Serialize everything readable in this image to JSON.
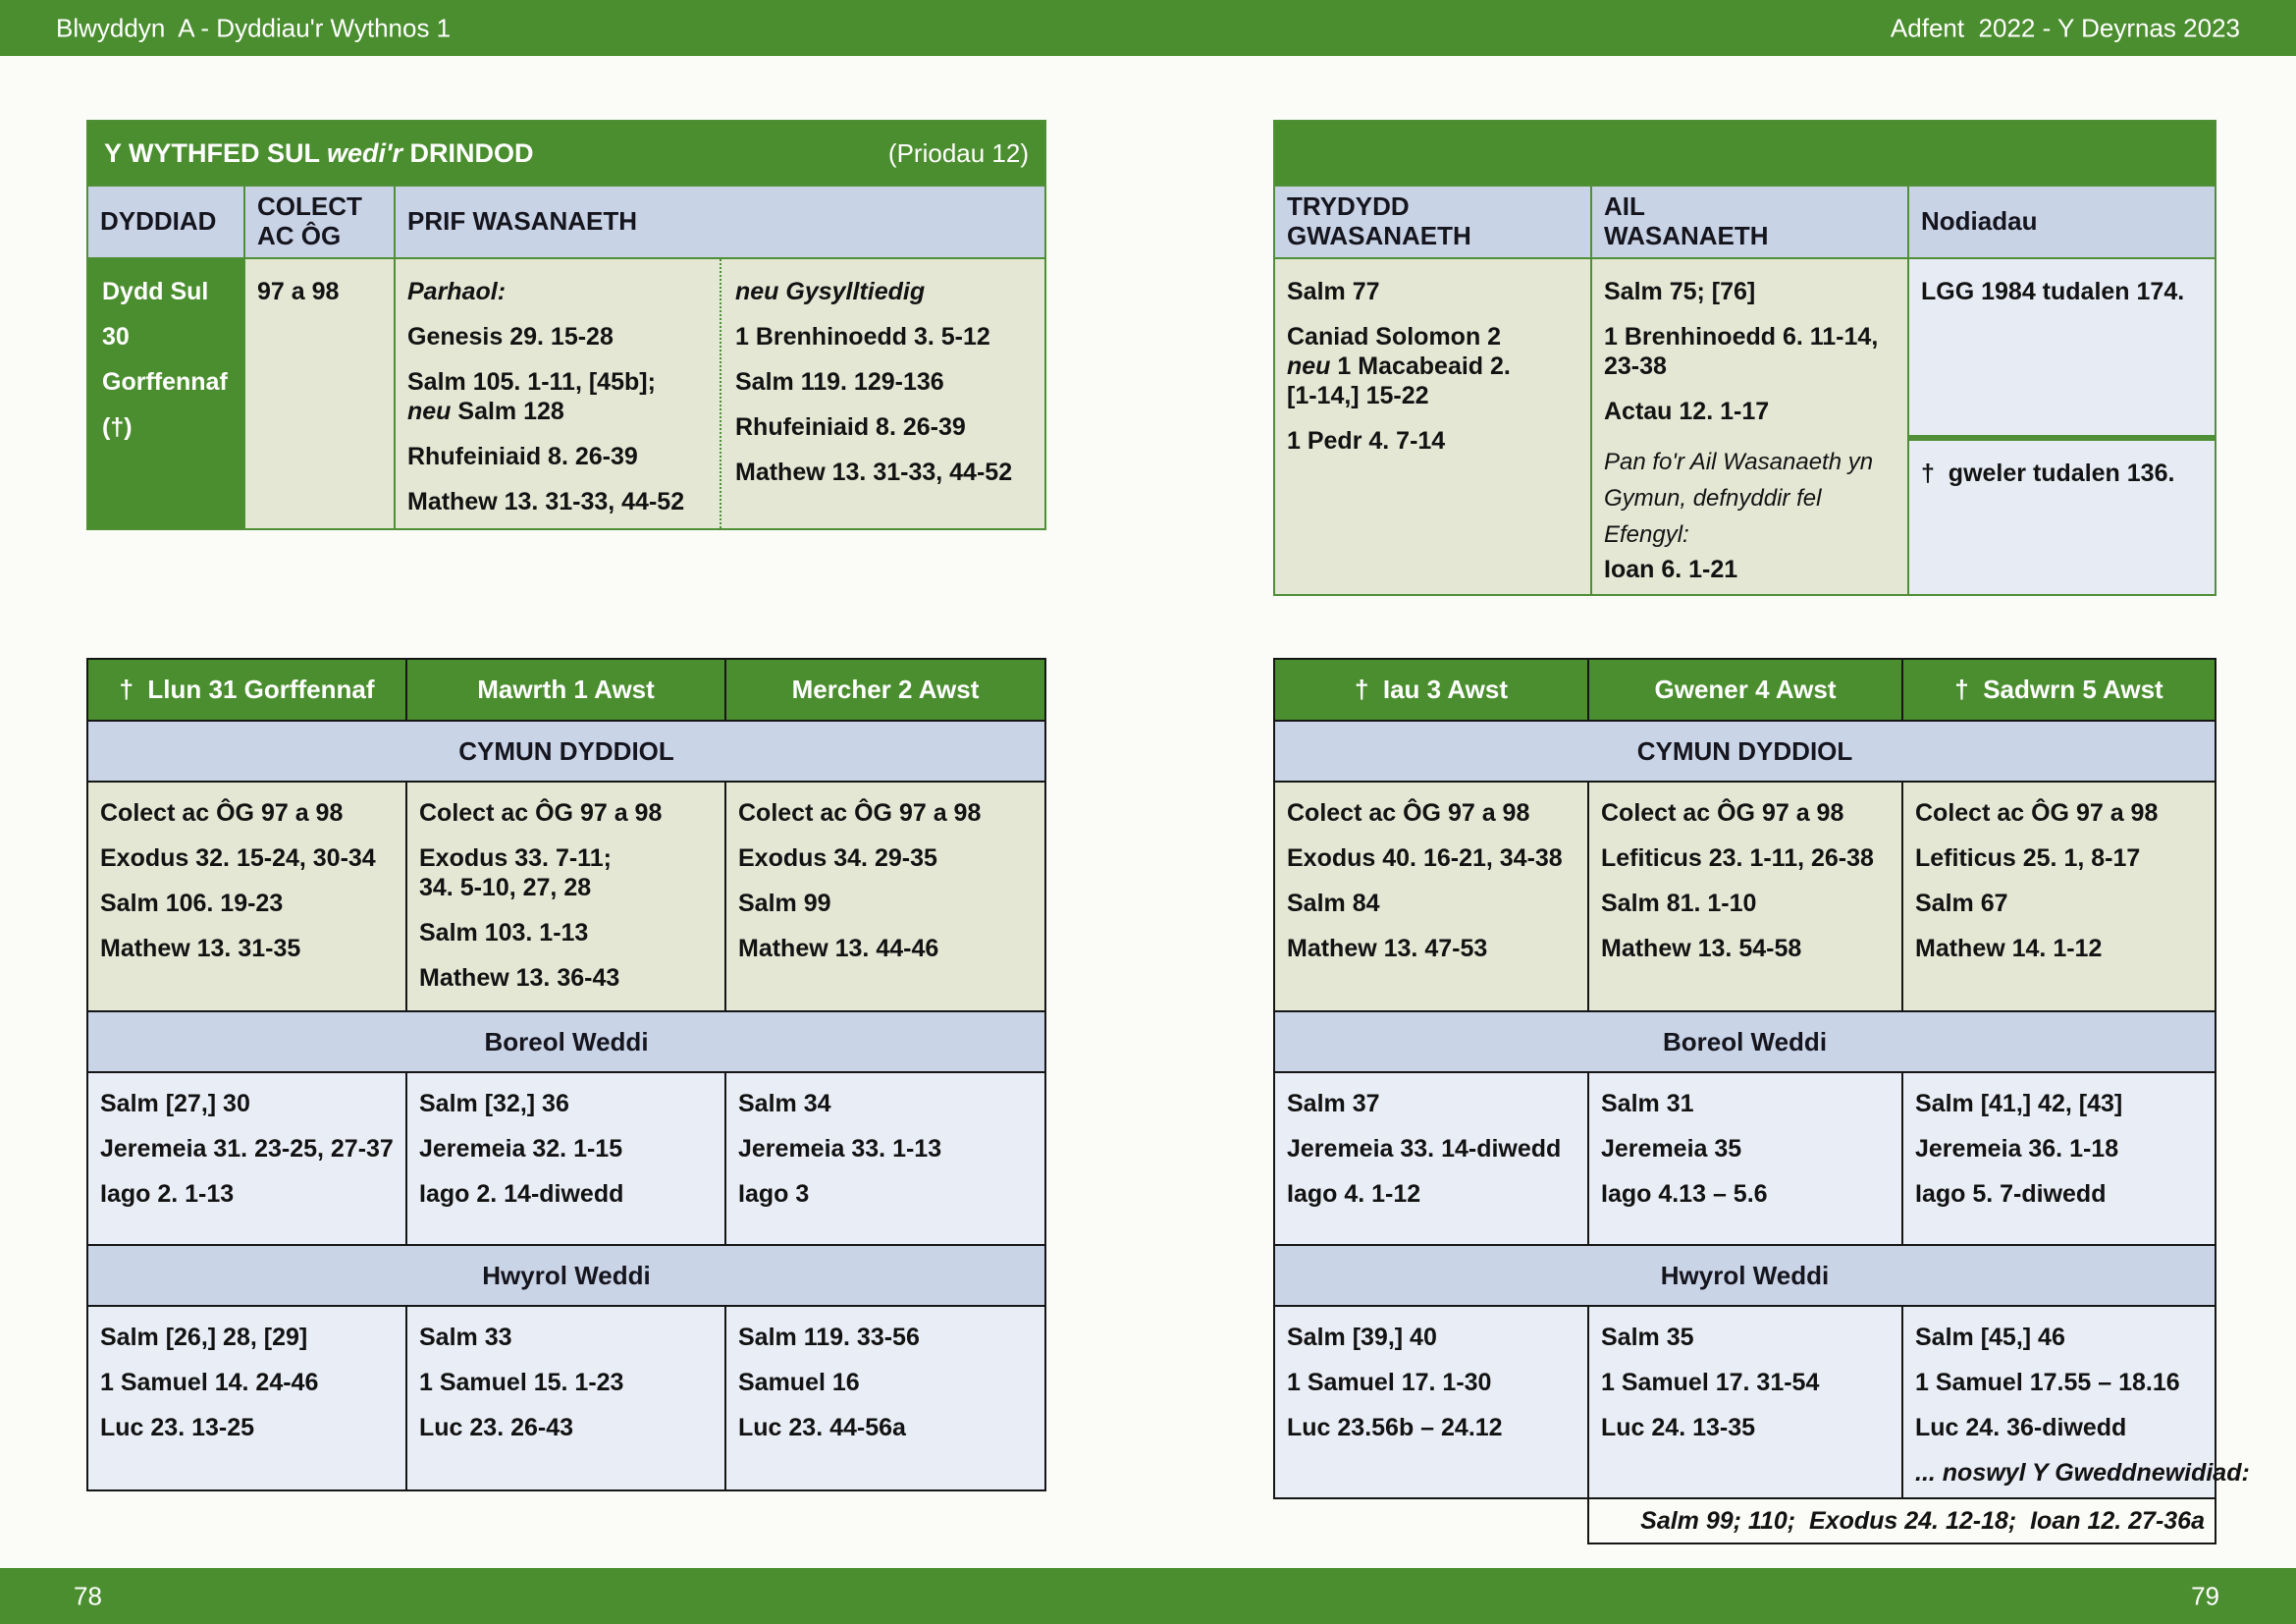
{
  "top_bar": {
    "left": "Blwyddyn  A - Dyddiau'r Wythnos 1",
    "right": "Adfent  2022 - Y Deyrnas 2023"
  },
  "bottom_bar": {
    "left_page": "78",
    "right_page": "79"
  },
  "colors": {
    "green": "#4b8e2f",
    "header_blue": "#c9d3e6",
    "band_blue": "#cad4e7",
    "cell_green": "#e3e7d4",
    "cell_blue": "#e9edf5"
  },
  "sunday_table": {
    "title_main1": "Y WYTHFED SUL ",
    "title_italic": "wedi'r",
    "title_main2": " DRINDOD",
    "title_right": "(Priodau 12)",
    "col_dyddiad": "DYDDIAD",
    "col_colect": "COLECT\nAC ÔG",
    "col_prif": "PRIF WASANAETH",
    "date_lines": [
      "Dydd Sul",
      "30",
      "Gorffennaf",
      "(†)"
    ],
    "colect_value": "97 a 98",
    "parhaol": {
      "heading": "Parhaol:",
      "r1": "Genesis 29. 15-28",
      "r2a": "Salm 105. 1-11, [45b];",
      "r2_italic": "neu",
      "r2b": " Salm 128",
      "r3": "Rhufeiniaid 8. 26-39",
      "r4": "Mathew 13. 31-33, 44-52"
    },
    "gysylltiedig": {
      "heading": "neu Gysylltiedig",
      "items": [
        "1 Brenhinoedd 3. 5-12",
        "Salm 119. 129-136",
        "Rhufeiniaid 8. 26-39",
        "Mathew 13. 31-33, 44-52"
      ]
    }
  },
  "services_table": {
    "col_trydydd": "TRYDYDD\nGWASANAETH",
    "col_ail": "AIL\nWASANAETH",
    "col_nodiadau": "Nodiadau",
    "trydydd": {
      "r1": "Salm 77",
      "r2a": "Caniad Solomon 2",
      "r2_italic": "neu",
      "r2b": " 1 Macabeaid 2.",
      "r2c": "[1-14,] 15-22",
      "r3": "1 Pedr 4. 7-14"
    },
    "ail": {
      "items": [
        "Salm 75; [76]",
        "1 Brenhinoedd 6. 11-14,\n23-38",
        "Actau 12. 1-17"
      ],
      "note_italic": "Pan fo'r Ail Wasanaeth yn Gymun, defnyddir fel Efengyl:",
      "gospel": "Ioan 6. 1-21"
    },
    "nodiadau": {
      "note1": "LGG 1984 tudalen 174.",
      "note2": "†  gweler tudalen 136."
    }
  },
  "weekday_left": {
    "days": [
      "†  Llun 31 Gorffennaf",
      "Mawrth 1 Awst",
      "Mercher 2 Awst"
    ],
    "band_cymun": "CYMUN DYDDIOL",
    "band_boreol": "Boreol Weddi",
    "band_hwyrol": "Hwyrol Weddi",
    "cymun": [
      [
        "Colect ac ÔG 97 a 98",
        "Exodus 32. 15-24, 30-34",
        "Salm 106. 19-23",
        "Mathew 13. 31-35"
      ],
      [
        "Colect ac ÔG 97 a 98",
        "Exodus 33. 7-11;\n34. 5-10, 27, 28",
        "Salm 103. 1-13",
        "Mathew 13. 36-43"
      ],
      [
        "Colect ac ÔG 97 a 98",
        "Exodus 34. 29-35",
        "Salm 99",
        "Mathew 13. 44-46"
      ]
    ],
    "boreol": [
      [
        "Salm [27,] 30",
        "Jeremeia 31. 23-25, 27-37",
        "Iago 2. 1-13"
      ],
      [
        "Salm [32,] 36",
        "Jeremeia 32. 1-15",
        "Iago 2. 14-diwedd"
      ],
      [
        "Salm 34",
        "Jeremeia 33. 1-13",
        "Iago 3"
      ]
    ],
    "hwyrol": [
      [
        "Salm [26,] 28, [29]",
        "1 Samuel 14. 24-46",
        "Luc 23. 13-25"
      ],
      [
        "Salm 33",
        "1 Samuel 15. 1-23",
        "Luc 23. 26-43"
      ],
      [
        "Salm 119. 33-56",
        "Samuel 16",
        "Luc 23. 44-56a"
      ]
    ]
  },
  "weekday_right": {
    "days": [
      "†  Iau 3 Awst",
      "Gwener 4 Awst",
      "†  Sadwrn 5 Awst"
    ],
    "band_cymun": "CYMUN DYDDIOL",
    "band_boreol": "Boreol Weddi",
    "band_hwyrol": "Hwyrol Weddi",
    "cymun": [
      [
        "Colect ac ÔG 97 a 98",
        "Exodus 40. 16-21, 34-38",
        "Salm 84",
        "Mathew 13. 47-53"
      ],
      [
        "Colect ac ÔG 97 a 98",
        "Lefiticus 23. 1-11, 26-38",
        "Salm 81. 1-10",
        "Mathew 13. 54-58"
      ],
      [
        "Colect ac ÔG 97 a 98",
        "Lefiticus 25. 1, 8-17",
        "Salm 67",
        "Mathew 14. 1-12"
      ]
    ],
    "boreol": [
      [
        "Salm 37",
        "Jeremeia 33. 14-diwedd",
        "Iago 4. 1-12"
      ],
      [
        "Salm 31",
        "Jeremeia 35",
        "Iago 4.13 – 5.6"
      ],
      [
        "Salm [41,] 42, [43]",
        "Jeremeia 36. 1-18",
        "Iago 5. 7-diwedd"
      ]
    ],
    "hwyrol": [
      [
        "Salm [39,] 40",
        "1 Samuel 17. 1-30",
        "Luc 23.56b – 24.12"
      ],
      [
        "Salm 35",
        "1 Samuel 17. 31-54",
        "Luc 24. 13-35"
      ],
      [
        "Salm [45,] 46",
        "1 Samuel 17.55 – 18.16",
        "Luc 24. 36-diwedd"
      ]
    ],
    "sadwrn_extra": "... noswyl Y Gweddnewidiad:",
    "footnote": "Salm 99; 110;  Exodus 24. 12-18;  Ioan 12. 27-36a"
  }
}
